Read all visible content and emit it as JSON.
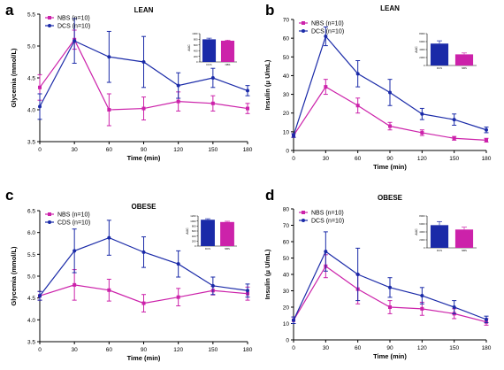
{
  "colors": {
    "nbs": "#cc22aa",
    "dcs": "#1a2aa8",
    "axis": "#000000"
  },
  "chart_data": [
    {
      "panel": "a",
      "type": "line",
      "title": "LEAN",
      "xlabel": "Time (min)",
      "ylabel": "Glycemia (mmol/L)",
      "x": [
        0,
        30,
        60,
        90,
        120,
        150,
        180
      ],
      "xlim": [
        0,
        180
      ],
      "ylim": [
        3.5,
        5.5
      ],
      "yticks": [
        3.5,
        4.0,
        4.5,
        5.0,
        5.5
      ],
      "ytick_labels": [
        "3.5",
        "4.0",
        "4.5",
        "5.0",
        "5.5"
      ],
      "legend_position": "top-left",
      "series": [
        {
          "name": "NBS (n=10)",
          "color": "#cc22aa",
          "marker": "square",
          "values": [
            4.35,
            5.1,
            4.0,
            4.02,
            4.13,
            4.1,
            4.02
          ],
          "errors": [
            0.2,
            0.15,
            0.25,
            0.18,
            0.15,
            0.12,
            0.08
          ]
        },
        {
          "name": "DCS (n=10)",
          "color": "#1a2aa8",
          "marker": "circle",
          "values": [
            4.05,
            5.08,
            4.83,
            4.75,
            4.38,
            4.5,
            4.3
          ],
          "errors": [
            0.2,
            0.35,
            0.4,
            0.4,
            0.2,
            0.15,
            0.08
          ]
        }
      ],
      "inset": {
        "type": "bar",
        "ylabel": "AUC",
        "yticks": [
          0,
          200,
          400,
          600,
          800,
          1000
        ],
        "ytick_labels": [
          "0",
          "200",
          "400",
          "600",
          "800",
          "1000"
        ],
        "ylim": [
          0,
          1000
        ],
        "categories": [
          "DCS",
          "NBS"
        ],
        "values": [
          800,
          750
        ],
        "errors": [
          40,
          20
        ],
        "colors": [
          "#1a2aa8",
          "#cc22aa"
        ]
      }
    },
    {
      "panel": "b",
      "type": "line",
      "title": "LEAN",
      "xlabel": "Time (min)",
      "ylabel": "Insulin (μ U/mL)",
      "x": [
        0,
        30,
        60,
        90,
        120,
        150,
        180
      ],
      "xlim": [
        0,
        180
      ],
      "ylim": [
        0,
        70
      ],
      "yticks": [
        0,
        10,
        20,
        30,
        40,
        50,
        60,
        70
      ],
      "ytick_labels": [
        "0",
        "10",
        "20",
        "30",
        "40",
        "50",
        "60",
        "70"
      ],
      "legend_position": "top-left",
      "series": [
        {
          "name": "NBS (n=10)",
          "color": "#cc22aa",
          "marker": "square",
          "values": [
            8,
            34,
            24,
            13,
            9.5,
            6.5,
            5.5
          ],
          "errors": [
            1,
            4,
            4,
            2,
            1.5,
            1,
            1
          ]
        },
        {
          "name": "DCS (n=10)",
          "color": "#1a2aa8",
          "marker": "circle",
          "values": [
            8,
            61,
            41,
            31,
            19.5,
            16.5,
            11
          ],
          "errors": [
            1,
            5,
            7,
            7,
            3,
            3,
            1.5
          ]
        }
      ],
      "inset": {
        "type": "bar",
        "ylabel": "AUC",
        "yticks": [
          0,
          2000,
          4000,
          6000,
          8000
        ],
        "ytick_labels": [
          "0",
          "2000",
          "4000",
          "6000",
          "8000"
        ],
        "ylim": [
          0,
          8000
        ],
        "categories": [
          "DCS",
          "NBS"
        ],
        "values": [
          5500,
          2800
        ],
        "errors": [
          700,
          350
        ],
        "colors": [
          "#1a2aa8",
          "#cc22aa"
        ]
      }
    },
    {
      "panel": "c",
      "type": "line",
      "title": "OBESE",
      "xlabel": "Time (min)",
      "ylabel": "Glycemia (mmol/L)",
      "x": [
        0,
        30,
        60,
        90,
        120,
        150,
        180
      ],
      "xlim": [
        0,
        180
      ],
      "ylim": [
        3.5,
        6.5
      ],
      "yticks": [
        3.5,
        4.0,
        4.5,
        5.0,
        5.5,
        6.0,
        6.5
      ],
      "ytick_labels": [
        "3.5",
        "4.0",
        "4.5",
        "5.0",
        "5.5",
        "6.0",
        "6.5"
      ],
      "legend_position": "top-left",
      "series": [
        {
          "name": "NBS (n=10)",
          "color": "#cc22aa",
          "marker": "square",
          "values": [
            4.55,
            4.8,
            4.68,
            4.38,
            4.52,
            4.67,
            4.6
          ],
          "errors": [
            0.1,
            0.35,
            0.25,
            0.2,
            0.2,
            0.1,
            0.15
          ]
        },
        {
          "name": "CDS (n=10)",
          "color": "#1a2aa8",
          "marker": "circle",
          "values": [
            4.55,
            5.58,
            5.88,
            5.55,
            5.28,
            4.78,
            4.67
          ],
          "errors": [
            0.1,
            0.5,
            0.4,
            0.35,
            0.3,
            0.2,
            0.15
          ]
        }
      ],
      "inset": {
        "type": "bar",
        "ylabel": "AUC",
        "yticks": [
          0,
          200,
          400,
          600,
          800,
          1000,
          1200
        ],
        "ytick_labels": [
          "0",
          "200",
          "400",
          "600",
          "800",
          "1000",
          "1200"
        ],
        "ylim": [
          0,
          1200
        ],
        "categories": [
          "DCS",
          "NBS"
        ],
        "values": [
          1050,
          960
        ],
        "errors": [
          40,
          30
        ],
        "colors": [
          "#1a2aa8",
          "#cc22aa"
        ]
      }
    },
    {
      "panel": "d",
      "type": "line",
      "title": "OBESE",
      "xlabel": "Time (min)",
      "ylabel": "Insulin (μ U/mL)",
      "x": [
        0,
        30,
        60,
        90,
        120,
        150,
        180
      ],
      "xlim": [
        0,
        180
      ],
      "ylim": [
        0,
        80
      ],
      "yticks": [
        0,
        10,
        20,
        30,
        40,
        50,
        60,
        70,
        80
      ],
      "ytick_labels": [
        "0",
        "10",
        "20",
        "30",
        "40",
        "50",
        "60",
        "70",
        "80"
      ],
      "legend_position": "top-left",
      "series": [
        {
          "name": "NBS (n=10)",
          "color": "#cc22aa",
          "marker": "square",
          "values": [
            12,
            45,
            31,
            20,
            19,
            16,
            11
          ],
          "errors": [
            2,
            7,
            9,
            4,
            4,
            3,
            2
          ]
        },
        {
          "name": "DCS (n=10)",
          "color": "#1a2aa8",
          "marker": "circle",
          "values": [
            12,
            54,
            40,
            32,
            27,
            20,
            12.5
          ],
          "errors": [
            2,
            12,
            16,
            6,
            5,
            4,
            2
          ]
        }
      ],
      "inset": {
        "type": "bar",
        "ylabel": "AUC",
        "yticks": [
          0,
          2000,
          4000,
          6000,
          8000
        ],
        "ytick_labels": [
          "0",
          "2000",
          "4000",
          "6000",
          "8000"
        ],
        "ylim": [
          0,
          8000
        ],
        "categories": [
          "DCS",
          "NBS"
        ],
        "values": [
          5700,
          4600
        ],
        "errors": [
          900,
          600
        ],
        "colors": [
          "#1a2aa8",
          "#cc22aa"
        ]
      }
    }
  ]
}
